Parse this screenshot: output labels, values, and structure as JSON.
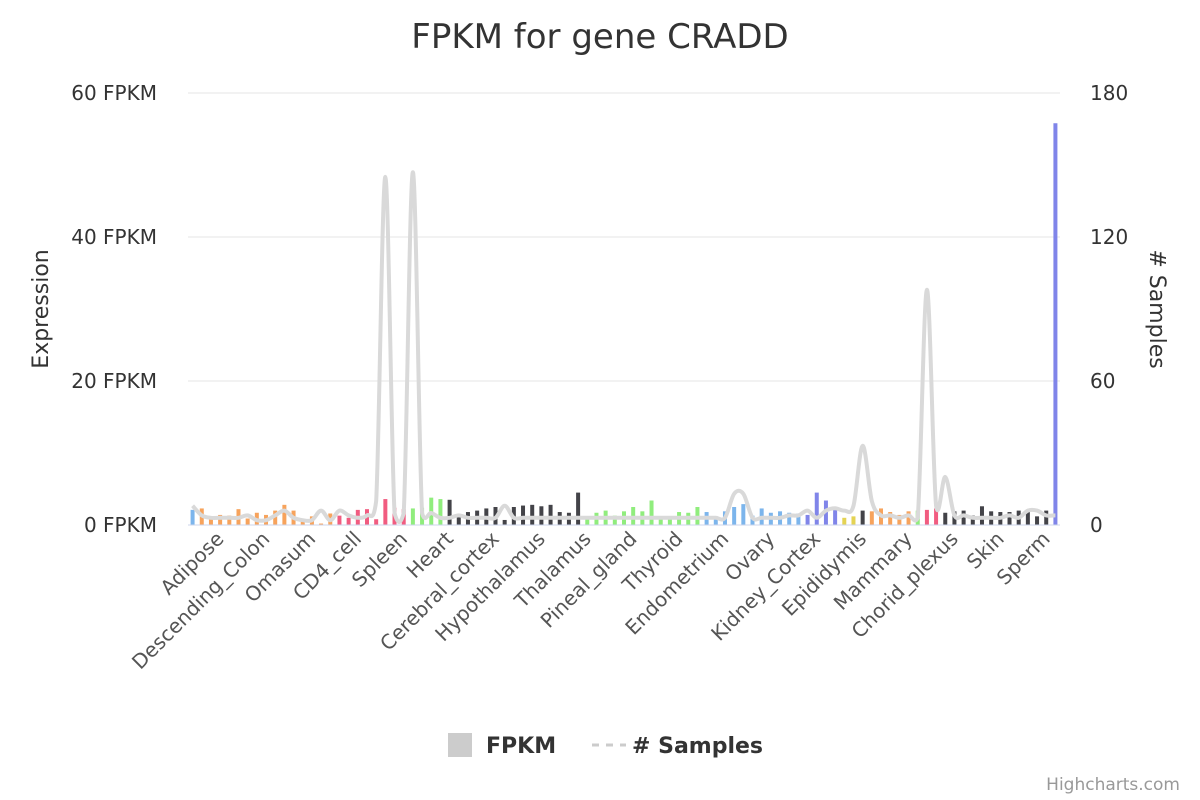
{
  "chart_data": {
    "type": "bar",
    "title": "FPKM for gene CRADD",
    "ylabel": "Expression",
    "y2label": "# Samples",
    "ylim": [
      0,
      60
    ],
    "y2lim": [
      0,
      180
    ],
    "y_ticks": [
      "0 FPKM",
      "20 FPKM",
      "40 FPKM",
      "60 FPKM"
    ],
    "y2_ticks": [
      "0",
      "60",
      "120",
      "180"
    ],
    "legend_position": "bottom-center",
    "grid": true,
    "category_labels": [
      "Adipose",
      "Descending_Colon",
      "Omasum",
      "CD4_cell",
      "Spleen",
      "Heart",
      "Cerebral_cortex",
      "Hypothalamus",
      "Thalamus",
      "Pineal_gland",
      "Thyroid",
      "Endometrium",
      "Ovary",
      "Kidney_Cortex",
      "Epididymis",
      "Mammary",
      "Chorid_plexus",
      "Skin",
      "Sperm"
    ],
    "series": [
      {
        "name": "FPKM",
        "type": "column",
        "values": [
          2.1,
          2.3,
          1.2,
          1.4,
          1.3,
          2.2,
          0.9,
          1.7,
          1.4,
          2.0,
          2.8,
          2.0,
          0.8,
          1.2,
          0.2,
          1.6,
          1.3,
          1.0,
          2.1,
          2.2,
          0.8,
          3.6,
          2.4,
          2.2,
          2.3,
          2.4,
          3.8,
          3.6,
          3.5,
          1.5,
          1.8,
          2.0,
          2.3,
          2.5,
          0.7,
          2.5,
          2.7,
          2.8,
          2.6,
          2.8,
          1.8,
          1.7,
          4.5,
          0.9,
          1.7,
          2.0,
          1.3,
          1.9,
          2.5,
          1.9,
          3.4,
          0.8,
          0.9,
          1.8,
          1.7,
          2.5,
          1.8,
          1.0,
          1.9,
          2.5,
          2.9,
          1.3,
          2.3,
          1.7,
          1.9,
          1.7,
          1.6,
          1.4,
          4.5,
          3.4,
          2.2,
          1.0,
          1.2,
          2.0,
          1.9,
          2.3,
          1.8,
          1.4,
          1.9,
          2.0,
          2.1,
          2.3,
          1.7,
          1.9,
          2.0,
          1.3,
          2.6,
          1.9,
          1.8,
          1.8,
          2.0,
          2.1,
          1.2,
          2.0,
          55.8
        ],
        "colors": [
          "#7cb5ec",
          "#f7a35c",
          "#f7a35c",
          "#f7a35c",
          "#f7a35c",
          "#f7a35c",
          "#f7a35c",
          "#f7a35c",
          "#f7a35c",
          "#f7a35c",
          "#f7a35c",
          "#f7a35c",
          "#f7a35c",
          "#f7a35c",
          "#f7a35c",
          "#f7a35c",
          "#f15c80",
          "#f15c80",
          "#f15c80",
          "#f15c80",
          "#f15c80",
          "#f15c80",
          "#f15c80",
          "#f15c80",
          "#90ed7d",
          "#90ed7d",
          "#90ed7d",
          "#90ed7d",
          "#434348",
          "#434348",
          "#434348",
          "#434348",
          "#434348",
          "#434348",
          "#434348",
          "#434348",
          "#434348",
          "#434348",
          "#434348",
          "#434348",
          "#434348",
          "#434348",
          "#434348",
          "#90ed7d",
          "#90ed7d",
          "#90ed7d",
          "#90ed7d",
          "#90ed7d",
          "#90ed7d",
          "#90ed7d",
          "#90ed7d",
          "#90ed7d",
          "#90ed7d",
          "#90ed7d",
          "#90ed7d",
          "#90ed7d",
          "#7cb5ec",
          "#7cb5ec",
          "#7cb5ec",
          "#7cb5ec",
          "#7cb5ec",
          "#7cb5ec",
          "#7cb5ec",
          "#7cb5ec",
          "#7cb5ec",
          "#7cb5ec",
          "#7cb5ec",
          "#8085e9",
          "#8085e9",
          "#8085e9",
          "#8085e9",
          "#e4d354",
          "#e4d354",
          "#434348",
          "#f7a35c",
          "#f7a35c",
          "#f7a35c",
          "#f7a35c",
          "#f7a35c",
          "#90ed7d",
          "#f15c80",
          "#f15c80",
          "#434348",
          "#434348",
          "#434348",
          "#434348",
          "#434348",
          "#434348",
          "#434348",
          "#434348",
          "#434348",
          "#434348",
          "#434348",
          "#434348",
          "#8085e9"
        ]
      },
      {
        "name": "# Samples",
        "type": "spline",
        "color": "#d9d9d9",
        "values": [
          8,
          4,
          3,
          3,
          3,
          3,
          4,
          2,
          2,
          4,
          6,
          3,
          2,
          2,
          6,
          2,
          6,
          4,
          3,
          4,
          10,
          145,
          5,
          5,
          147,
          5,
          5,
          3,
          3,
          4,
          3,
          3,
          3,
          3,
          8,
          3,
          3,
          3,
          3,
          3,
          3,
          3,
          3,
          3,
          3,
          3,
          3,
          3,
          3,
          3,
          3,
          3,
          3,
          3,
          3,
          3,
          3,
          3,
          3,
          13,
          13,
          3,
          3,
          3,
          3,
          4,
          4,
          6,
          3,
          6,
          7,
          6,
          8,
          33,
          10,
          4,
          4,
          3,
          4,
          3,
          98,
          8,
          20,
          4,
          4,
          3,
          3,
          3,
          3,
          4,
          3,
          6,
          6,
          4,
          4
        ]
      }
    ]
  },
  "legend": {
    "fpkm_label": "FPKM",
    "samples_label": "# Samples"
  },
  "credits": "Highcharts.com"
}
